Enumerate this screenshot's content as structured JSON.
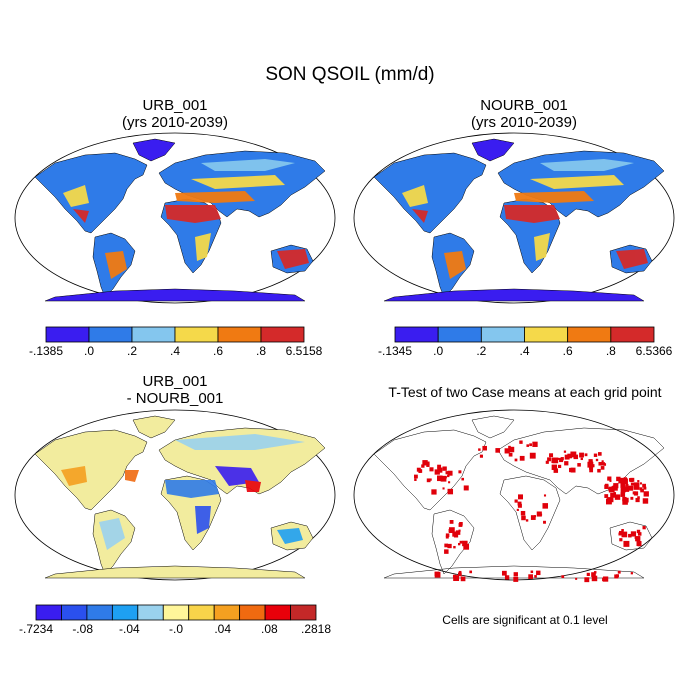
{
  "figure": {
    "title": "SON QSOIL (mm/d)"
  },
  "panels": [
    {
      "id": "urb",
      "title_line1": "URB_001",
      "title_line2": "(yrs 2010-2039)",
      "colorbar": {
        "labels": [
          "-.1385",
          ".0",
          ".2",
          ".4",
          ".6",
          ".8",
          "6.5158"
        ],
        "colors": [
          "#3a1df0",
          "#2f7be8",
          "#84c6ee",
          "#f5d94a",
          "#f07a12",
          "#d42a2a"
        ]
      }
    },
    {
      "id": "nourb",
      "title_line1": "NOURB_001",
      "title_line2": "(yrs 2010-2039)",
      "colorbar": {
        "labels": [
          "-.1345",
          ".0",
          ".2",
          ".4",
          ".6",
          ".8",
          "6.5366"
        ],
        "colors": [
          "#3a1df0",
          "#2f7be8",
          "#84c6ee",
          "#f5d94a",
          "#f07a12",
          "#d42a2a"
        ]
      }
    },
    {
      "id": "diff",
      "title_line1": "URB_001",
      "title_line2": "- NOURB_001",
      "colorbar": {
        "labels": [
          "-.7234",
          "-.08",
          "-.04",
          "-.0",
          ".04",
          ".08",
          ".2818"
        ],
        "colors": [
          "#3a1df0",
          "#2a50ee",
          "#2f7be8",
          "#1ea0f2",
          "#9ad2ee",
          "#fff69a",
          "#f8d44a",
          "#f5a020",
          "#f06a10",
          "#e8000a",
          "#c42828"
        ]
      }
    },
    {
      "id": "ttest",
      "title": "T-Test of two Case means at each grid point",
      "note": "Cells are significant at 0.1 level",
      "significance_color": "#e0000a"
    }
  ]
}
